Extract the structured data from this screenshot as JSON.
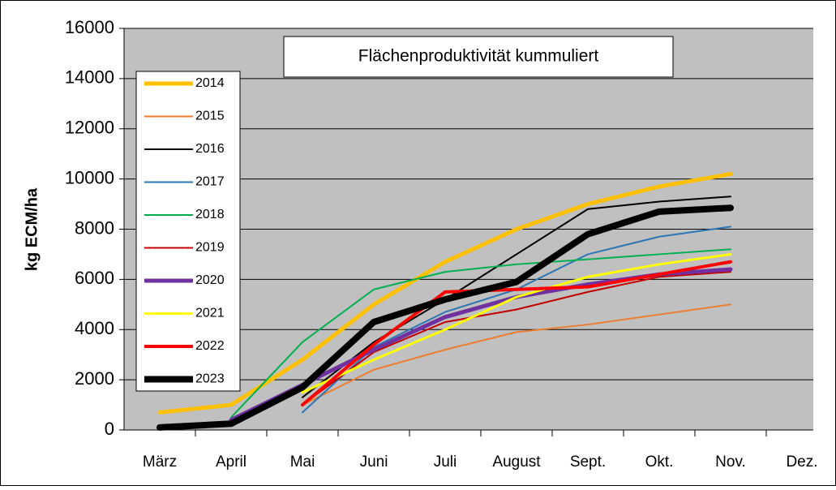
{
  "chart_data": {
    "type": "line",
    "title": "Flächenproduktivität kummuliert",
    "y_label": "kg ECM/ha",
    "categories": [
      "März",
      "April",
      "Mai",
      "Juni",
      "Juli",
      "August",
      "Sept.",
      "Okt.",
      "Nov.",
      "Dez."
    ],
    "ylim": [
      0,
      16000
    ],
    "yticks": [
      0,
      2000,
      4000,
      6000,
      8000,
      10000,
      12000,
      14000,
      16000
    ],
    "grid": true,
    "legend": "left",
    "series": [
      {
        "name": "2014",
        "color": "#ffc000",
        "width": 5,
        "values": [
          700,
          1000,
          2800,
          5000,
          6700,
          8000,
          9000,
          9700,
          10200,
          null
        ]
      },
      {
        "name": "2015",
        "color": "#ed7d31",
        "width": 2,
        "values": [
          null,
          null,
          1000,
          2400,
          3200,
          3900,
          4200,
          4600,
          5000,
          null
        ]
      },
      {
        "name": "2016",
        "color": "#000000",
        "width": 2,
        "values": [
          null,
          null,
          1300,
          3500,
          5200,
          7000,
          8800,
          9100,
          9300,
          null
        ]
      },
      {
        "name": "2017",
        "color": "#2e75b6",
        "width": 2,
        "values": [
          null,
          null,
          700,
          3300,
          4700,
          5600,
          7000,
          7700,
          8100,
          null
        ]
      },
      {
        "name": "2018",
        "color": "#00b050",
        "width": 2,
        "values": [
          null,
          500,
          3500,
          5600,
          6300,
          6600,
          6800,
          7000,
          7200,
          null
        ]
      },
      {
        "name": "2019",
        "color": "#c00000",
        "width": 2,
        "values": [
          null,
          null,
          1000,
          3100,
          4300,
          4800,
          5500,
          6100,
          6300,
          null
        ]
      },
      {
        "name": "2020",
        "color": "#7030a0",
        "width": 5,
        "values": [
          null,
          400,
          1800,
          3200,
          4500,
          5300,
          5800,
          6200,
          6400,
          null
        ]
      },
      {
        "name": "2021",
        "color": "#ffff00",
        "width": 3,
        "values": [
          null,
          null,
          1500,
          2800,
          4000,
          5300,
          6100,
          6600,
          7000,
          null
        ]
      },
      {
        "name": "2022",
        "color": "#ff0000",
        "width": 4,
        "values": [
          null,
          null,
          1000,
          3400,
          5500,
          5600,
          5700,
          6200,
          6700,
          null
        ]
      },
      {
        "name": "2023",
        "color": "#000000",
        "width": 8,
        "values": [
          100,
          250,
          1700,
          4300,
          5200,
          5900,
          7800,
          8700,
          8850,
          null
        ]
      }
    ]
  }
}
